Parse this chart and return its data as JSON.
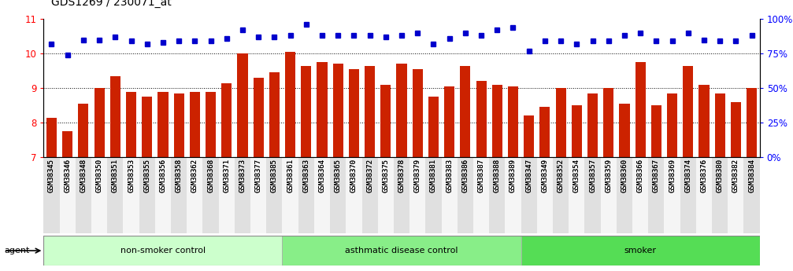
{
  "title": "GDS1269 / 230071_at",
  "categories": [
    "GSM38345",
    "GSM38346",
    "GSM38348",
    "GSM38350",
    "GSM38351",
    "GSM38353",
    "GSM38355",
    "GSM38356",
    "GSM38358",
    "GSM38362",
    "GSM38368",
    "GSM38371",
    "GSM38373",
    "GSM38377",
    "GSM38385",
    "GSM38361",
    "GSM38363",
    "GSM38364",
    "GSM38365",
    "GSM38370",
    "GSM38372",
    "GSM38375",
    "GSM38378",
    "GSM38379",
    "GSM38381",
    "GSM38383",
    "GSM38386",
    "GSM38387",
    "GSM38388",
    "GSM38389",
    "GSM38347",
    "GSM38349",
    "GSM38352",
    "GSM38354",
    "GSM38357",
    "GSM38359",
    "GSM38360",
    "GSM38366",
    "GSM38367",
    "GSM38369",
    "GSM38374",
    "GSM38376",
    "GSM38380",
    "GSM38382",
    "GSM38384"
  ],
  "bar_values": [
    8.15,
    7.75,
    8.55,
    9.0,
    9.35,
    8.88,
    8.75,
    8.9,
    8.85,
    8.88,
    8.9,
    9.15,
    10.0,
    9.3,
    9.45,
    10.05,
    9.65,
    9.75,
    9.7,
    9.55,
    9.65,
    9.1,
    9.7,
    9.55,
    8.75,
    9.05,
    9.65,
    9.2,
    9.1,
    9.05,
    8.2,
    8.45,
    9.0,
    8.5,
    8.85,
    9.0,
    8.55,
    9.75,
    8.5,
    8.85,
    9.65,
    9.1,
    8.85,
    8.6,
    9.0
  ],
  "percentile_pct": [
    82,
    74,
    85,
    85,
    87,
    84,
    82,
    83,
    84,
    84,
    84,
    86,
    92,
    87,
    87,
    88,
    96,
    88,
    88,
    88,
    88,
    87,
    88,
    90,
    82,
    86,
    90,
    88,
    92,
    94,
    77,
    84,
    84,
    82,
    84,
    84,
    88,
    90,
    84,
    84,
    90,
    85,
    84,
    84,
    88
  ],
  "groups": [
    {
      "label": "non-smoker control",
      "start": 0,
      "end": 15,
      "color": "#ccffcc"
    },
    {
      "label": "asthmatic disease control",
      "start": 15,
      "end": 30,
      "color": "#88ee88"
    },
    {
      "label": "smoker",
      "start": 30,
      "end": 45,
      "color": "#55dd55"
    }
  ],
  "ylim_left": [
    7,
    11
  ],
  "ylim_right": [
    0,
    100
  ],
  "yticks_left": [
    7,
    8,
    9,
    10,
    11
  ],
  "yticks_right": [
    0,
    25,
    50,
    75,
    100
  ],
  "bar_color": "#cc2200",
  "dot_color": "#0000cc",
  "background_color": "#ffffff"
}
